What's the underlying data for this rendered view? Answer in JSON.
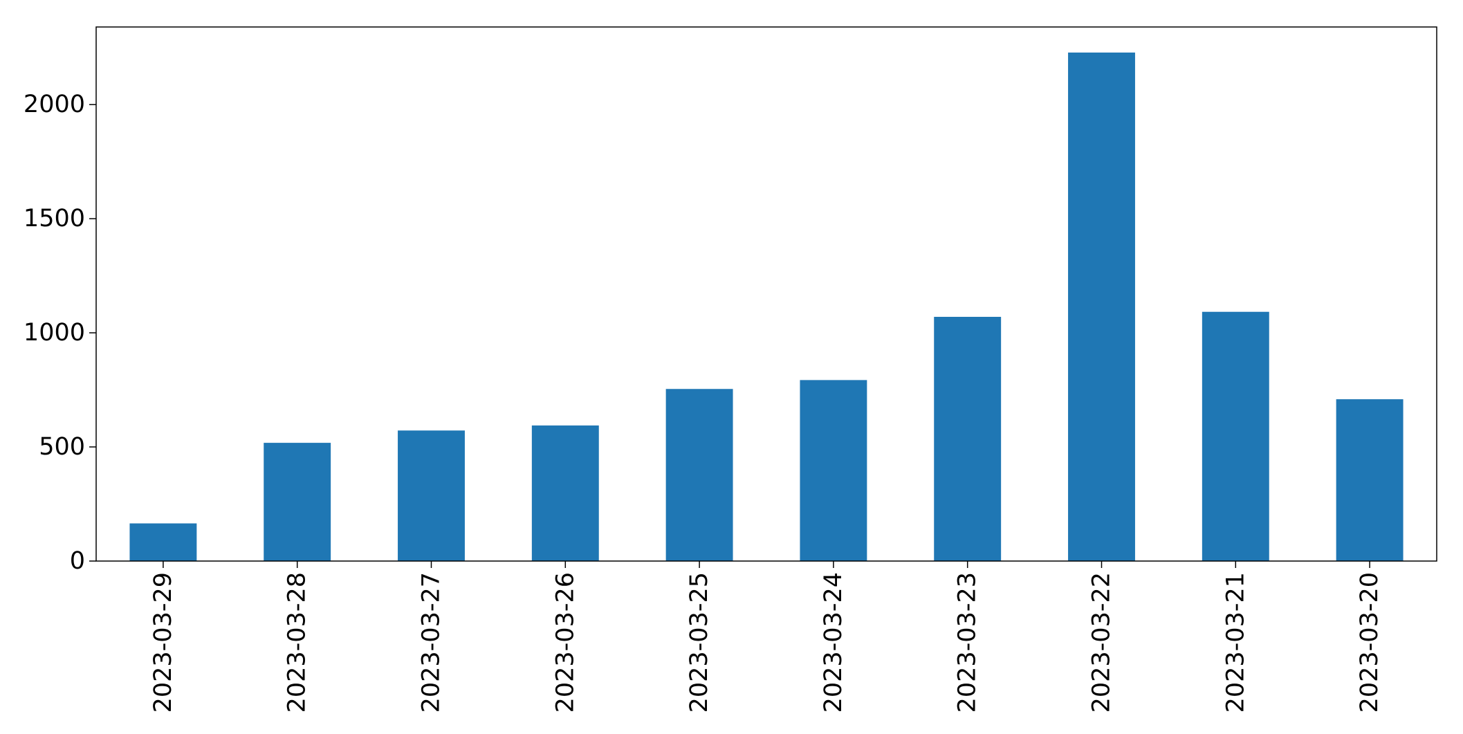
{
  "chart_data": {
    "type": "bar",
    "title": "",
    "xlabel": "",
    "ylabel": "",
    "categories": [
      "2023-03-29",
      "2023-03-28",
      "2023-03-27",
      "2023-03-26",
      "2023-03-25",
      "2023-03-24",
      "2023-03-23",
      "2023-03-22",
      "2023-03-21",
      "2023-03-20"
    ],
    "values": [
      165,
      518,
      572,
      594,
      754,
      793,
      1070,
      2228,
      1092,
      709
    ],
    "ylim": [
      0,
      2340
    ],
    "yticks": [
      0,
      500,
      1000,
      1500,
      2000
    ],
    "grid": false,
    "legend": "none",
    "bar_color": "#1f77b4"
  }
}
